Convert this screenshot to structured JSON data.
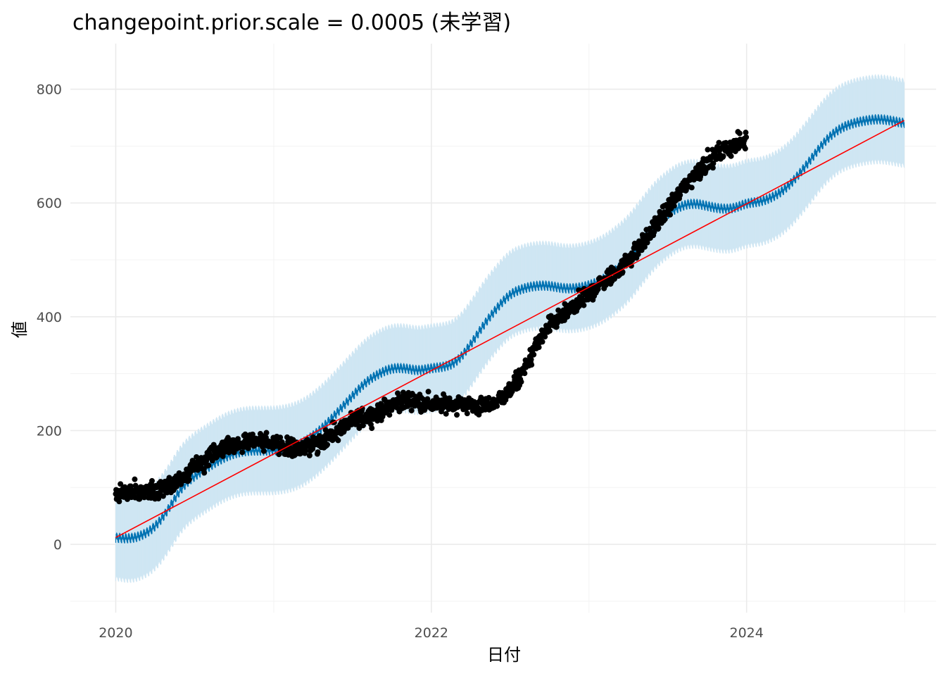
{
  "chart_data": {
    "type": "line",
    "title": "changepoint.prior.scale = 0.0005 (未学習)",
    "xlabel": "日付",
    "ylabel": "値",
    "x_axis": {
      "type": "date",
      "range": [
        "2019-09-18",
        "2025-03-15"
      ],
      "ticks": [
        "2020-01-01",
        "2022-01-01",
        "2024-01-01"
      ],
      "tick_labels": [
        "2020",
        "2022",
        "2024"
      ],
      "minor_ticks": [
        "2021-01-01",
        "2023-01-01",
        "2025-01-01"
      ]
    },
    "y_axis": {
      "range": [
        -120,
        880
      ],
      "ticks": [
        0,
        200,
        400,
        600,
        800
      ],
      "tick_labels": [
        "0",
        "200",
        "400",
        "600",
        "800"
      ],
      "minor_ticks": [
        -100,
        100,
        300,
        500,
        700
      ]
    },
    "grid": true,
    "legend": "none",
    "colors": {
      "observed": "#000000",
      "forecast": "#0072b2",
      "interval": "#cfe6f3",
      "trend": "#ff0000",
      "grid": "#ebebeb"
    },
    "series": [
      {
        "kind": "points",
        "color": "#000000",
        "x": [
          "2020-01-01",
          "2020-02-01",
          "2020-03-01",
          "2020-04-01",
          "2020-05-01",
          "2020-06-01",
          "2020-07-01",
          "2020-08-01",
          "2020-09-01",
          "2020-10-01",
          "2020-11-01",
          "2020-12-01",
          "2021-01-01",
          "2021-02-01",
          "2021-03-01",
          "2021-04-01",
          "2021-05-01",
          "2021-06-01",
          "2021-07-01",
          "2021-08-01",
          "2021-09-01",
          "2021-10-01",
          "2021-11-01",
          "2021-12-01",
          "2022-01-01",
          "2022-02-01",
          "2022-03-01",
          "2022-04-01",
          "2022-05-01",
          "2022-06-01",
          "2022-07-01",
          "2022-08-01",
          "2022-09-01",
          "2022-10-01",
          "2022-11-01",
          "2022-12-01",
          "2023-01-01",
          "2023-02-01",
          "2023-03-01",
          "2023-04-01",
          "2023-05-01",
          "2023-06-01",
          "2023-07-01",
          "2023-08-01",
          "2023-09-01",
          "2023-10-01",
          "2023-11-01",
          "2023-12-01",
          "2023-12-31"
        ],
        "y": [
          85,
          95,
          90,
          95,
          100,
          110,
          135,
          155,
          170,
          175,
          180,
          185,
          175,
          170,
          168,
          175,
          185,
          200,
          215,
          225,
          232,
          245,
          255,
          250,
          245,
          245,
          248,
          245,
          240,
          250,
          270,
          300,
          350,
          385,
          400,
          420,
          440,
          460,
          475,
          500,
          525,
          555,
          590,
          620,
          650,
          670,
          690,
          700,
          710
        ]
      },
      {
        "kind": "line",
        "color": "#0072b2",
        "x": [
          "2020-01-01",
          "2020-02-01",
          "2020-03-01",
          "2020-04-01",
          "2020-05-01",
          "2020-06-01",
          "2020-07-01",
          "2020-08-01",
          "2020-09-01",
          "2020-10-01",
          "2020-11-01",
          "2020-12-01",
          "2021-01-01",
          "2021-02-01",
          "2021-03-01",
          "2021-04-01",
          "2021-05-01",
          "2021-06-01",
          "2021-07-01",
          "2021-08-01",
          "2021-09-01",
          "2021-10-01",
          "2021-11-01",
          "2021-12-01",
          "2022-01-01",
          "2022-02-01",
          "2022-03-01",
          "2022-04-01",
          "2022-05-01",
          "2022-06-01",
          "2022-07-01",
          "2022-08-01",
          "2022-09-01",
          "2022-10-01",
          "2022-11-01",
          "2022-12-01",
          "2023-01-01",
          "2023-02-01",
          "2023-03-01",
          "2023-04-01",
          "2023-05-01",
          "2023-06-01",
          "2023-07-01",
          "2023-08-01",
          "2023-09-01",
          "2023-10-01",
          "2023-11-01",
          "2023-12-01",
          "2024-01-01",
          "2024-02-01",
          "2024-03-01",
          "2024-04-01",
          "2024-05-01",
          "2024-06-01",
          "2024-07-01",
          "2024-08-01",
          "2024-09-01",
          "2024-10-01",
          "2024-11-01",
          "2024-12-01",
          "2024-12-31"
        ],
        "y": [
          12,
          10,
          15,
          30,
          60,
          100,
          120,
          135,
          150,
          160,
          165,
          165,
          165,
          168,
          175,
          190,
          210,
          235,
          260,
          285,
          300,
          310,
          310,
          305,
          310,
          312,
          320,
          350,
          385,
          415,
          440,
          450,
          455,
          455,
          450,
          450,
          455,
          465,
          480,
          500,
          530,
          560,
          580,
          595,
          600,
          595,
          590,
          590,
          600,
          602,
          610,
          625,
          650,
          680,
          710,
          730,
          740,
          745,
          748,
          745,
          740
        ],
        "lower": [
          -60,
          -65,
          -60,
          -45,
          -15,
          25,
          45,
          60,
          75,
          85,
          90,
          90,
          90,
          93,
          100,
          115,
          135,
          160,
          185,
          210,
          225,
          235,
          235,
          230,
          235,
          237,
          245,
          275,
          310,
          340,
          365,
          375,
          380,
          380,
          375,
          375,
          380,
          390,
          405,
          425,
          455,
          485,
          505,
          520,
          525,
          520,
          515,
          515,
          525,
          527,
          535,
          550,
          575,
          605,
          635,
          655,
          665,
          670,
          673,
          670,
          665
        ],
        "upper": [
          85,
          82,
          88,
          105,
          135,
          175,
          195,
          210,
          225,
          235,
          240,
          240,
          240,
          243,
          250,
          265,
          285,
          310,
          335,
          360,
          375,
          385,
          385,
          380,
          385,
          387,
          395,
          425,
          460,
          490,
          515,
          525,
          530,
          530,
          525,
          525,
          530,
          540,
          555,
          575,
          605,
          635,
          655,
          670,
          675,
          670,
          665,
          665,
          675,
          677,
          685,
          700,
          725,
          755,
          785,
          805,
          815,
          820,
          823,
          820,
          815
        ]
      },
      {
        "kind": "line",
        "color": "#ff0000",
        "x": [
          "2020-01-01",
          "2024-12-31"
        ],
        "y": [
          12,
          745
        ]
      }
    ]
  }
}
